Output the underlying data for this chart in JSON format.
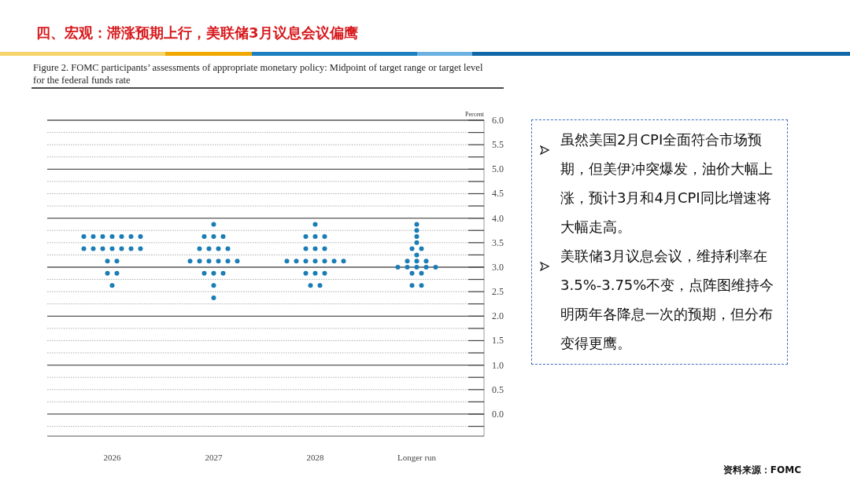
{
  "chart_data": {
    "type": "scatter",
    "title": "四、宏观：滞涨预期上行，美联储3月议息会议偏鹰",
    "subtitle": "Figure 2. FOMC participants’ assessments of appropriate monetary policy: Midpoint of target range or target level for the federal funds rate",
    "ylabel": "Percent",
    "categories": [
      "2026",
      "2027",
      "2028",
      "Longer run"
    ],
    "series": [
      {
        "color": "#1a7db5",
        "values": [
          3.625,
          3.875,
          3.875,
          3.875
        ]
      },
      {
        "color": "#1a7db5",
        "values": [
          3.625,
          3.625,
          3.625,
          3.75
        ]
      },
      {
        "color": "#1a7db5",
        "values": [
          3.625,
          3.625,
          3.625,
          3.625
        ]
      },
      {
        "color": "#1a7db5",
        "values": [
          3.625,
          3.625,
          3.625,
          3.5
        ]
      },
      {
        "color": "#1a7db5",
        "values": [
          3.625,
          3.375,
          3.375,
          3.375
        ]
      },
      {
        "color": "#1a7db5",
        "values": [
          3.625,
          3.375,
          3.375,
          3.375
        ]
      },
      {
        "color": "#1a7db5",
        "values": [
          3.625,
          3.375,
          3.375,
          3.25
        ]
      },
      {
        "color": "#1a7db5",
        "values": [
          3.375,
          3.375,
          3.125,
          3.125
        ]
      },
      {
        "color": "#1a7db5",
        "values": [
          3.375,
          3.125,
          3.125,
          3.125
        ]
      },
      {
        "color": "#1a7db5",
        "values": [
          3.375,
          3.125,
          3.125,
          3.125
        ]
      },
      {
        "color": "#1a7db5",
        "values": [
          3.375,
          3.125,
          3.125,
          3.0
        ]
      },
      {
        "color": "#1a7db5",
        "values": [
          3.375,
          3.125,
          3.125,
          3.0
        ]
      },
      {
        "color": "#1a7db5",
        "values": [
          3.375,
          3.125,
          3.125,
          3.0
        ]
      },
      {
        "color": "#1a7db5",
        "values": [
          3.375,
          3.125,
          3.125,
          3.0
        ]
      },
      {
        "color": "#1a7db5",
        "values": [
          3.125,
          2.875,
          2.875,
          3.0
        ]
      },
      {
        "color": "#1a7db5",
        "values": [
          3.125,
          2.875,
          2.875,
          2.875
        ]
      },
      {
        "color": "#1a7db5",
        "values": [
          2.875,
          2.875,
          2.875,
          2.875
        ]
      },
      {
        "color": "#1a7db5",
        "values": [
          2.875,
          2.625,
          2.625,
          2.625
        ]
      },
      {
        "color": "#1a7db5",
        "values": [
          2.625,
          2.375,
          2.625,
          2.625
        ]
      }
    ],
    "ylim": [
      -0.45,
      6.0
    ],
    "yticks": [
      {
        "value": -0.25,
        "label": null
      },
      {
        "value": 0,
        "label": "0.0"
      },
      {
        "value": 0.25,
        "label": null
      },
      {
        "value": 0.5,
        "label": "0.5"
      },
      {
        "value": 0.75,
        "label": null
      },
      {
        "value": 1,
        "label": "1.0"
      },
      {
        "value": 1.25,
        "label": null
      },
      {
        "value": 1.5,
        "label": "1.5"
      },
      {
        "value": 1.75,
        "label": null
      },
      {
        "value": 2,
        "label": "2.0"
      },
      {
        "value": 2.25,
        "label": null
      },
      {
        "value": 2.5,
        "label": "2.5"
      },
      {
        "value": 2.75,
        "label": null
      },
      {
        "value": 3,
        "label": "3.0"
      },
      {
        "value": 3.25,
        "label": null
      },
      {
        "value": 3.5,
        "label": "3.5"
      },
      {
        "value": 3.75,
        "label": null
      },
      {
        "value": 4,
        "label": "4.0"
      },
      {
        "value": 4.25,
        "label": null
      },
      {
        "value": 4.5,
        "label": "4.5"
      },
      {
        "value": 4.75,
        "label": null
      },
      {
        "value": 5,
        "label": "5.0"
      },
      {
        "value": 5.25,
        "label": null
      },
      {
        "value": 5.5,
        "label": "5.5"
      },
      {
        "value": 5.75,
        "label": null
      },
      {
        "value": 6,
        "label": "6.0"
      }
    ],
    "grid": "y",
    "marker": "circle",
    "annotations": [
      "虽然美国2月CPI全面符合市场预期，但美伊冲突爆发，油价大幅上涨，预计3月和4月CPI同比增速将大幅走高。",
      "美联储3月议息会议，维持利率在3.5%-3.75%不变，点阵图维持今明两年各降息一次的预期，但分布变得更鹰。",
      "资料来源：FOMC"
    ]
  }
}
